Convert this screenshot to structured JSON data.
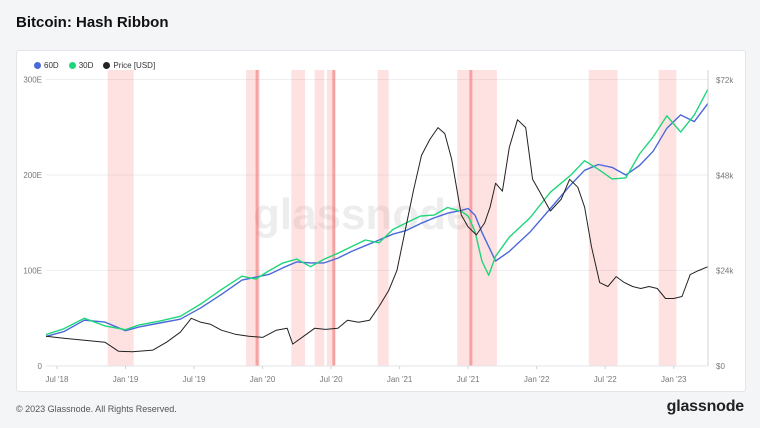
{
  "page": {
    "title": "Bitcoin: Hash Ribbon",
    "footer": "© 2023 Glassnode. All Rights Reserved.",
    "brand": "glassnode",
    "watermark": "glassnode"
  },
  "chart_data": {
    "type": "line",
    "legend": [
      {
        "name": "60D",
        "color": "#4a69d9"
      },
      {
        "name": "30D",
        "color": "#1ed67a"
      },
      {
        "name": "Price [USD]",
        "color": "#222222"
      }
    ],
    "x_ticks": [
      "Jul '18",
      "Jan '19",
      "Jul '19",
      "Jan '20",
      "Jul '20",
      "Jan '21",
      "Jul '21",
      "Jan '22",
      "Jul '22",
      "Jan '23"
    ],
    "y_left": {
      "ticks": [
        "0",
        "100E",
        "200E",
        "300E"
      ],
      "values": [
        0,
        100,
        200,
        300
      ],
      "range": [
        0,
        310
      ]
    },
    "y_right": {
      "ticks": [
        "$0",
        "$24k",
        "$48k",
        "$72k"
      ],
      "values": [
        0,
        24,
        48,
        72
      ],
      "range": [
        0,
        74.5
      ]
    },
    "x_range": [
      2018.42,
      2023.25
    ],
    "grid": true,
    "legend_position": "top-left",
    "capitulation_bands": [
      [
        2018.87,
        2019.06
      ],
      [
        2019.88,
        2019.98
      ],
      [
        2020.21,
        2020.31
      ],
      [
        2020.38,
        2020.45
      ],
      [
        2020.47,
        2020.53
      ],
      [
        2020.84,
        2020.92
      ],
      [
        2021.42,
        2021.55
      ],
      [
        2021.55,
        2021.71
      ],
      [
        2022.38,
        2022.46
      ],
      [
        2022.46,
        2022.59
      ],
      [
        2022.89,
        2023.02
      ]
    ],
    "band_markers": [
      2019.96,
      2020.52,
      2021.52
    ],
    "series": [
      {
        "name": "60D",
        "x": [
          2018.42,
          2018.55,
          2018.7,
          2018.85,
          2019.0,
          2019.1,
          2019.25,
          2019.4,
          2019.55,
          2019.7,
          2019.85,
          2019.95,
          2020.05,
          2020.15,
          2020.25,
          2020.35,
          2020.45,
          2020.55,
          2020.65,
          2020.75,
          2020.85,
          2020.95,
          2021.05,
          2021.15,
          2021.25,
          2021.35,
          2021.45,
          2021.5,
          2021.55,
          2021.6,
          2021.65,
          2021.7,
          2021.8,
          2021.95,
          2022.1,
          2022.25,
          2022.35,
          2022.45,
          2022.55,
          2022.65,
          2022.75,
          2022.85,
          2022.95,
          2023.05,
          2023.15,
          2023.25
        ],
        "values": [
          31,
          36,
          48,
          46,
          37,
          41,
          45,
          49,
          61,
          75,
          90,
          93,
          96,
          103,
          109,
          108,
          108,
          113,
          120,
          126,
          132,
          138,
          142,
          149,
          155,
          160,
          163,
          165,
          158,
          140,
          125,
          110,
          120,
          140,
          165,
          190,
          205,
          211,
          208,
          200,
          210,
          225,
          249,
          263,
          256,
          275
        ]
      },
      {
        "name": "30D",
        "x": [
          2018.42,
          2018.55,
          2018.7,
          2018.85,
          2019.0,
          2019.1,
          2019.25,
          2019.4,
          2019.55,
          2019.7,
          2019.85,
          2019.95,
          2020.05,
          2020.15,
          2020.25,
          2020.35,
          2020.45,
          2020.55,
          2020.65,
          2020.75,
          2020.85,
          2020.95,
          2021.05,
          2021.15,
          2021.25,
          2021.35,
          2021.45,
          2021.5,
          2021.55,
          2021.6,
          2021.65,
          2021.7,
          2021.8,
          2021.95,
          2022.1,
          2022.25,
          2022.35,
          2022.45,
          2022.55,
          2022.65,
          2022.75,
          2022.85,
          2022.95,
          2023.05,
          2023.15,
          2023.25
        ],
        "values": [
          33,
          39,
          50,
          42,
          38,
          43,
          47,
          52,
          65,
          80,
          94,
          91,
          100,
          108,
          112,
          104,
          112,
          118,
          125,
          132,
          129,
          143,
          150,
          157,
          158,
          166,
          162,
          157,
          141,
          110,
          95,
          115,
          135,
          155,
          182,
          200,
          215,
          206,
          196,
          197,
          222,
          240,
          262,
          245,
          263,
          290
        ]
      },
      {
        "name": "Price [USD]",
        "x": [
          2018.42,
          2018.55,
          2018.7,
          2018.85,
          2018.95,
          2019.05,
          2019.2,
          2019.3,
          2019.4,
          2019.48,
          2019.55,
          2019.62,
          2019.7,
          2019.8,
          2019.9,
          2020.0,
          2020.1,
          2020.18,
          2020.22,
          2020.3,
          2020.38,
          2020.46,
          2020.55,
          2020.62,
          2020.7,
          2020.78,
          2020.85,
          2020.92,
          2020.98,
          2021.04,
          2021.1,
          2021.16,
          2021.22,
          2021.28,
          2021.33,
          2021.38,
          2021.45,
          2021.5,
          2021.56,
          2021.62,
          2021.66,
          2021.7,
          2021.75,
          2021.8,
          2021.86,
          2021.92,
          2021.97,
          2022.02,
          2022.1,
          2022.18,
          2022.24,
          2022.3,
          2022.35,
          2022.4,
          2022.46,
          2022.52,
          2022.58,
          2022.64,
          2022.7,
          2022.76,
          2022.82,
          2022.88,
          2022.94,
          2023.0,
          2023.06,
          2023.12,
          2023.18,
          2023.25
        ],
        "values": [
          7.5,
          7.0,
          6.5,
          6.0,
          3.7,
          3.6,
          4.0,
          6.0,
          8.5,
          12.0,
          11.0,
          10.5,
          9.0,
          8.0,
          7.5,
          7.2,
          9.0,
          9.5,
          5.5,
          7.5,
          9.5,
          9.2,
          9.5,
          11.5,
          11.0,
          11.5,
          15.0,
          19.0,
          24.0,
          34.0,
          44.0,
          53.0,
          57.0,
          60.0,
          58.5,
          52.0,
          38.0,
          35.0,
          33.0,
          36.0,
          40.0,
          46.0,
          44.0,
          55.0,
          62.0,
          60.0,
          47.0,
          44.0,
          39.0,
          42.0,
          47.0,
          45.0,
          40.0,
          30.0,
          21.0,
          20.0,
          22.5,
          21.0,
          20.0,
          19.5,
          20.0,
          19.5,
          17.0,
          17.0,
          17.5,
          23.0,
          24.0,
          25.0
        ]
      }
    ]
  }
}
